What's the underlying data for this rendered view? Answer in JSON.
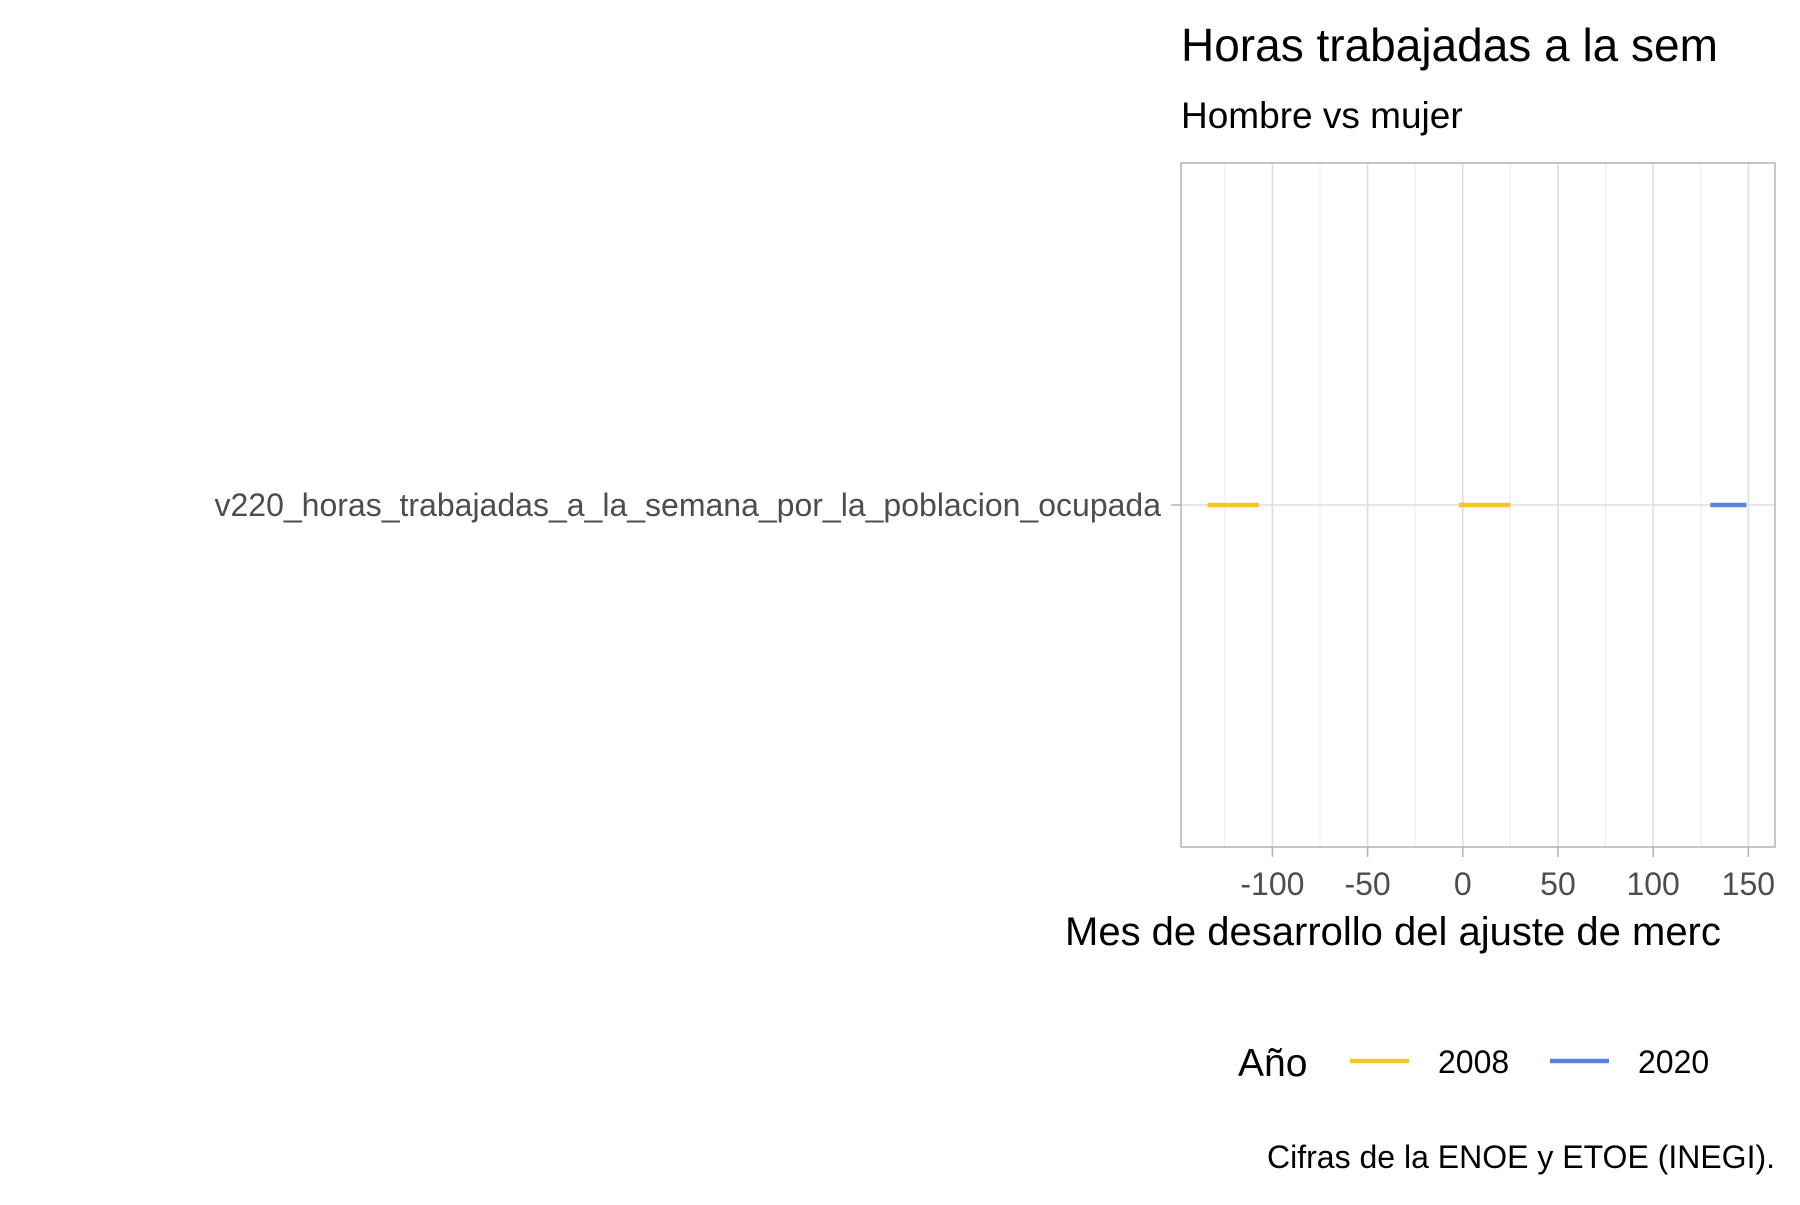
{
  "chart_data": {
    "type": "line",
    "title": "Horas trabajadas a la sem",
    "subtitle": "Hombre vs mujer",
    "xlabel": "Mes de desarrollo del ajuste de merc",
    "caption": "Cifras de la ENOE y ETOE (INEGI).",
    "categories": [
      "v220_horas_trabajadas_a_la_semana_por_la_poblacion_ocupada"
    ],
    "xlim": [
      -148,
      164
    ],
    "xticks": [
      -100,
      -50,
      0,
      50,
      100,
      150
    ],
    "xtick_labels": [
      "-100",
      "-50",
      "0",
      "50",
      "100",
      "150"
    ],
    "grid": true,
    "legend": {
      "title": "Año",
      "position": "bottom"
    },
    "series": [
      {
        "name": "2008",
        "color": "#F7C32E",
        "segments": [
          {
            "category": "v220_horas_trabajadas_a_la_semana_por_la_poblacion_ocupada",
            "x_start": -134,
            "x_end": -107
          },
          {
            "category": "v220_horas_trabajadas_a_la_semana_por_la_poblacion_ocupada",
            "x_start": -2,
            "x_end": 25
          }
        ]
      },
      {
        "name": "2020",
        "color": "#5B82E0",
        "segments": [
          {
            "category": "v220_horas_trabajadas_a_la_semana_por_la_poblacion_ocupada",
            "x_start": 130,
            "x_end": 149
          }
        ]
      }
    ]
  }
}
